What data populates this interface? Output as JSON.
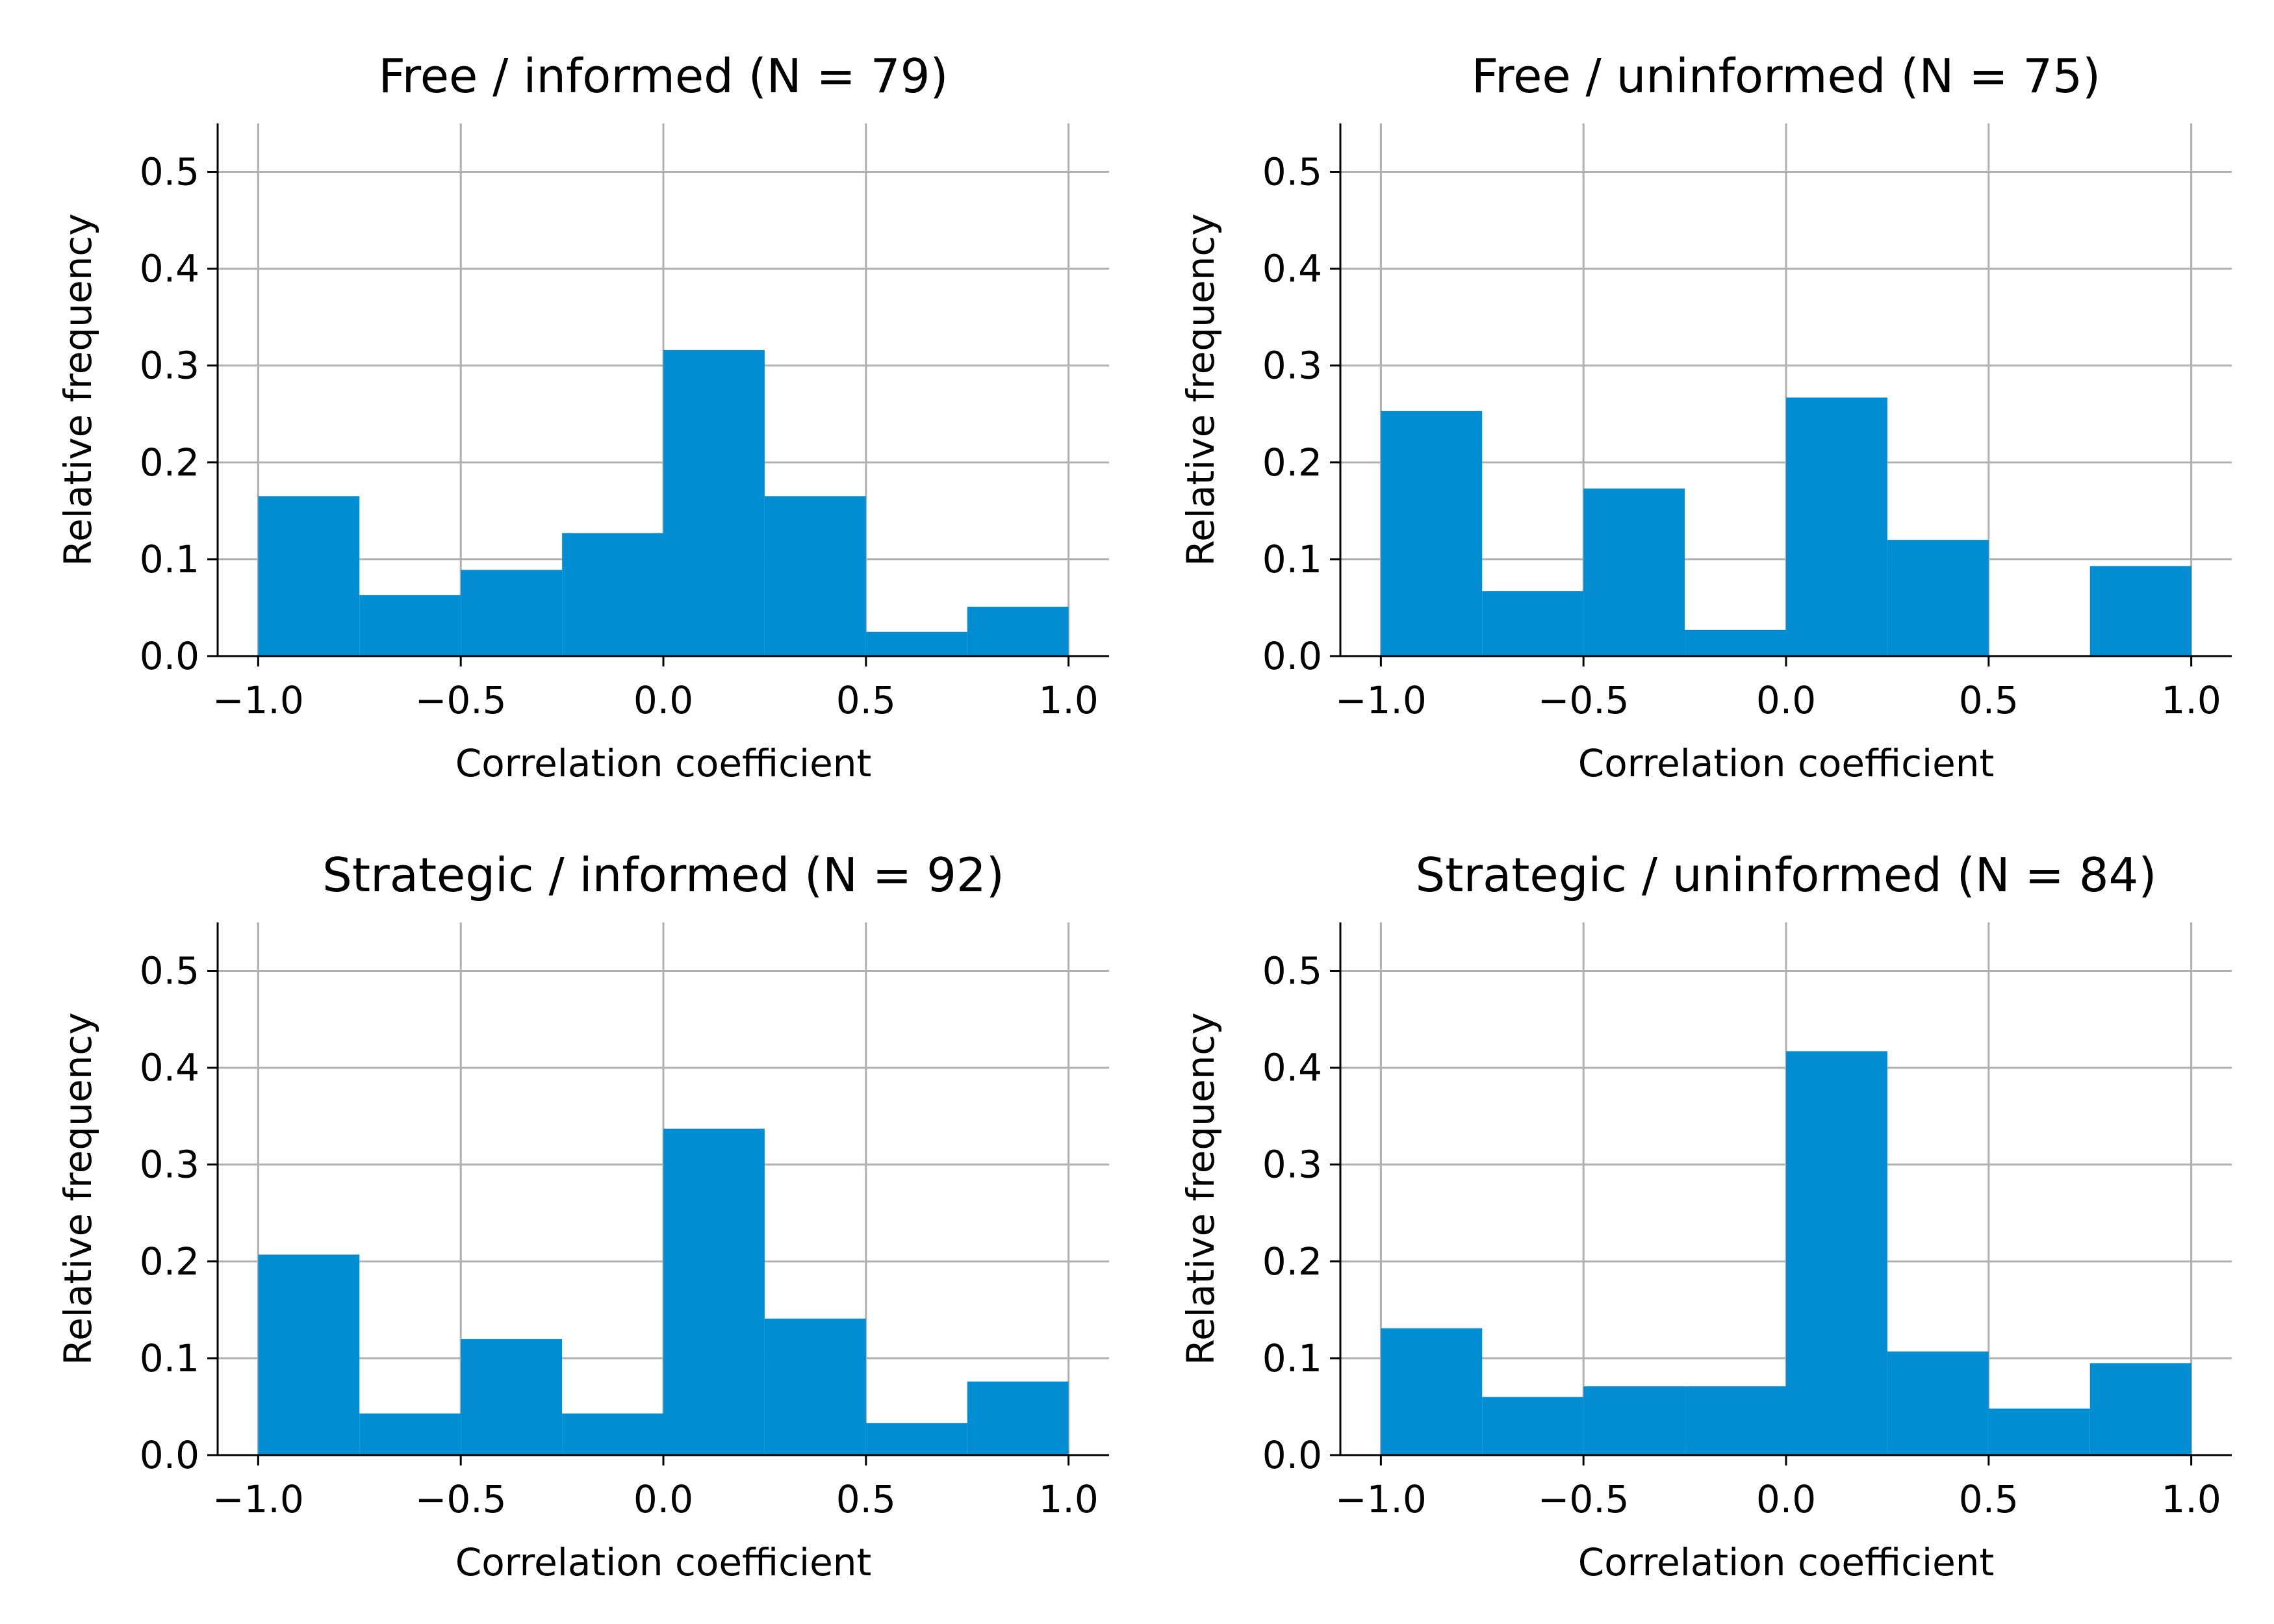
{
  "colors": {
    "bar": "#038ed4",
    "grid": "#b0b0b0",
    "axis": "#000000"
  },
  "chart_data": [
    {
      "type": "bar",
      "title": "Free / informed (N = 79)",
      "xlabel": "Correlation coefficient",
      "ylabel": "Relative frequency",
      "bin_edges": [
        -1.0,
        -0.75,
        -0.5,
        -0.25,
        0.0,
        0.25,
        0.5,
        0.75,
        1.0
      ],
      "values": [
        0.165,
        0.063,
        0.089,
        0.127,
        0.316,
        0.165,
        0.025,
        0.051
      ],
      "xlim": [
        -1.1,
        1.1
      ],
      "ylim": [
        0,
        0.55
      ],
      "xticks": [
        -1.0,
        -0.5,
        0.0,
        0.5,
        1.0
      ],
      "xticklabels": [
        "−1.0",
        "−0.5",
        "0.0",
        "0.5",
        "1.0"
      ],
      "yticks": [
        0.0,
        0.1,
        0.2,
        0.3,
        0.4,
        0.5
      ],
      "yticklabels": [
        "0.0",
        "0.1",
        "0.2",
        "0.3",
        "0.4",
        "0.5"
      ],
      "grid": true
    },
    {
      "type": "bar",
      "title": "Free / uninformed (N = 75)",
      "xlabel": "Correlation coefficient",
      "ylabel": "Relative frequency",
      "bin_edges": [
        -1.0,
        -0.75,
        -0.5,
        -0.25,
        0.0,
        0.25,
        0.5,
        0.75,
        1.0
      ],
      "values": [
        0.253,
        0.067,
        0.173,
        0.027,
        0.267,
        0.12,
        0.0,
        0.093
      ],
      "xlim": [
        -1.1,
        1.1
      ],
      "ylim": [
        0,
        0.55
      ],
      "xticks": [
        -1.0,
        -0.5,
        0.0,
        0.5,
        1.0
      ],
      "xticklabels": [
        "−1.0",
        "−0.5",
        "0.0",
        "0.5",
        "1.0"
      ],
      "yticks": [
        0.0,
        0.1,
        0.2,
        0.3,
        0.4,
        0.5
      ],
      "yticklabels": [
        "0.0",
        "0.1",
        "0.2",
        "0.3",
        "0.4",
        "0.5"
      ],
      "grid": true
    },
    {
      "type": "bar",
      "title": "Strategic / informed (N = 92)",
      "xlabel": "Correlation coefficient",
      "ylabel": "Relative frequency",
      "bin_edges": [
        -1.0,
        -0.75,
        -0.5,
        -0.25,
        0.0,
        0.25,
        0.5,
        0.75,
        1.0
      ],
      "values": [
        0.207,
        0.043,
        0.12,
        0.043,
        0.337,
        0.141,
        0.033,
        0.076
      ],
      "xlim": [
        -1.1,
        1.1
      ],
      "ylim": [
        0,
        0.55
      ],
      "xticks": [
        -1.0,
        -0.5,
        0.0,
        0.5,
        1.0
      ],
      "xticklabels": [
        "−1.0",
        "−0.5",
        "0.0",
        "0.5",
        "1.0"
      ],
      "yticks": [
        0.0,
        0.1,
        0.2,
        0.3,
        0.4,
        0.5
      ],
      "yticklabels": [
        "0.0",
        "0.1",
        "0.2",
        "0.3",
        "0.4",
        "0.5"
      ],
      "grid": true
    },
    {
      "type": "bar",
      "title": "Strategic / uninformed (N = 84)",
      "xlabel": "Correlation coefficient",
      "ylabel": "Relative frequency",
      "bin_edges": [
        -1.0,
        -0.75,
        -0.5,
        -0.25,
        0.0,
        0.25,
        0.5,
        0.75,
        1.0
      ],
      "values": [
        0.131,
        0.06,
        0.071,
        0.071,
        0.417,
        0.107,
        0.048,
        0.095
      ],
      "xlim": [
        -1.1,
        1.1
      ],
      "ylim": [
        0,
        0.55
      ],
      "xticks": [
        -1.0,
        -0.5,
        0.0,
        0.5,
        1.0
      ],
      "xticklabels": [
        "−1.0",
        "−0.5",
        "0.0",
        "0.5",
        "1.0"
      ],
      "yticks": [
        0.0,
        0.1,
        0.2,
        0.3,
        0.4,
        0.5
      ],
      "yticklabels": [
        "0.0",
        "0.1",
        "0.2",
        "0.3",
        "0.4",
        "0.5"
      ],
      "grid": true
    }
  ]
}
